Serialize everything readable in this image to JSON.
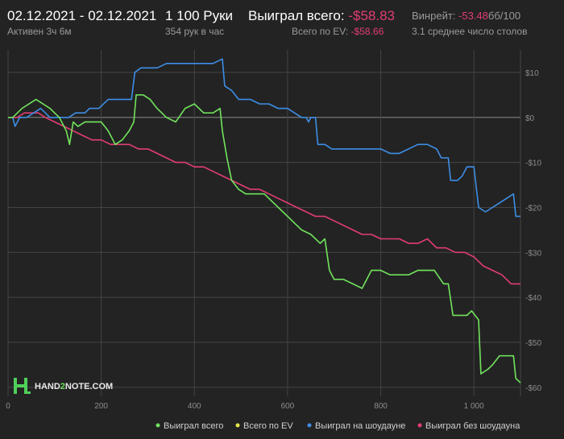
{
  "header": {
    "date_range": "02.12.2021 - 02.12.2021",
    "active": "Активен 3ч 6м",
    "hands": "1 100 Руки",
    "hands_per_hour": "354 рук в час",
    "won_label": "Выиграл всего:",
    "won_value": "-$58.83",
    "ev_label": "Всего по EV:",
    "ev_value": "-$58.66",
    "winrate_label": "Винрейт:",
    "winrate_value": "-53.48",
    "winrate_unit": "бб/100",
    "tables": "3.1 среднее число столов"
  },
  "logo": {
    "text": "HAND2NOTE.COM",
    "highlight": "2"
  },
  "colors": {
    "background": "#232323",
    "grid": "#444444",
    "zero_line": "#8a8a8a",
    "won": "#6ee05c",
    "ev": "#e6e64a",
    "showdown": "#3d8ee6",
    "non_showdown": "#e23d73",
    "negative": "#e23d73"
  },
  "chart_data": {
    "type": "line",
    "xlabel": "",
    "ylabel": "",
    "xlim": [
      0,
      1100
    ],
    "ylim": [
      -62,
      15
    ],
    "x_ticks": [
      0,
      200,
      400,
      600,
      800,
      1000
    ],
    "x_tick_labels": [
      "0",
      "200",
      "400",
      "600",
      "800",
      "1 000"
    ],
    "y_ticks": [
      10,
      0,
      -10,
      -20,
      -30,
      -40,
      -50,
      -60
    ],
    "y_tick_labels": [
      "$10",
      "$0",
      "-$10",
      "-$20",
      "-$30",
      "-$40",
      "-$50",
      "-$60"
    ],
    "grid": true,
    "legend_position": "bottom",
    "series": [
      {
        "name": "Выиграл всего",
        "color_key": "won",
        "points": [
          [
            0,
            0
          ],
          [
            10,
            0
          ],
          [
            20,
            1
          ],
          [
            30,
            2
          ],
          [
            45,
            3
          ],
          [
            60,
            4
          ],
          [
            75,
            3
          ],
          [
            90,
            2
          ],
          [
            100,
            1
          ],
          [
            110,
            0
          ],
          [
            125,
            -3
          ],
          [
            132,
            -6
          ],
          [
            140,
            -1
          ],
          [
            150,
            -2
          ],
          [
            165,
            -1
          ],
          [
            180,
            -1
          ],
          [
            200,
            -1
          ],
          [
            215,
            -3
          ],
          [
            230,
            -6
          ],
          [
            245,
            -5
          ],
          [
            260,
            -3
          ],
          [
            270,
            -1
          ],
          [
            275,
            5
          ],
          [
            290,
            5
          ],
          [
            305,
            4
          ],
          [
            320,
            2
          ],
          [
            340,
            0
          ],
          [
            360,
            -1
          ],
          [
            380,
            2
          ],
          [
            400,
            3
          ],
          [
            420,
            1
          ],
          [
            440,
            1
          ],
          [
            455,
            2
          ],
          [
            460,
            -3
          ],
          [
            470,
            -9
          ],
          [
            480,
            -14
          ],
          [
            495,
            -16
          ],
          [
            510,
            -17
          ],
          [
            530,
            -17
          ],
          [
            550,
            -17
          ],
          [
            570,
            -19
          ],
          [
            590,
            -21
          ],
          [
            610,
            -23
          ],
          [
            630,
            -25
          ],
          [
            650,
            -26
          ],
          [
            670,
            -28
          ],
          [
            680,
            -27
          ],
          [
            690,
            -34
          ],
          [
            700,
            -36
          ],
          [
            720,
            -36
          ],
          [
            740,
            -37
          ],
          [
            760,
            -38
          ],
          [
            780,
            -34
          ],
          [
            800,
            -34
          ],
          [
            820,
            -35
          ],
          [
            840,
            -35
          ],
          [
            860,
            -35
          ],
          [
            880,
            -34
          ],
          [
            900,
            -34
          ],
          [
            915,
            -34
          ],
          [
            935,
            -37
          ],
          [
            945,
            -37
          ],
          [
            955,
            -44
          ],
          [
            970,
            -44
          ],
          [
            985,
            -44
          ],
          [
            995,
            -43
          ],
          [
            1010,
            -45
          ],
          [
            1015,
            -57
          ],
          [
            1030,
            -56
          ],
          [
            1040,
            -55
          ],
          [
            1055,
            -53
          ],
          [
            1070,
            -53
          ],
          [
            1085,
            -53
          ],
          [
            1090,
            -58
          ],
          [
            1100,
            -59
          ]
        ]
      },
      {
        "name": "Всего по EV",
        "color_key": "ev",
        "points": [
          [
            0,
            0
          ],
          [
            10,
            0
          ],
          [
            20,
            1
          ],
          [
            30,
            2
          ],
          [
            45,
            3
          ],
          [
            60,
            4
          ],
          [
            75,
            3
          ],
          [
            90,
            2
          ],
          [
            100,
            1
          ],
          [
            110,
            0
          ],
          [
            125,
            -3
          ],
          [
            132,
            -6
          ],
          [
            140,
            -1
          ],
          [
            150,
            -2
          ],
          [
            165,
            -1
          ],
          [
            180,
            -1
          ],
          [
            200,
            -1
          ],
          [
            215,
            -3
          ],
          [
            230,
            -6
          ],
          [
            245,
            -5
          ],
          [
            260,
            -3
          ],
          [
            270,
            -1
          ],
          [
            275,
            5
          ],
          [
            290,
            5
          ],
          [
            305,
            4
          ],
          [
            320,
            2
          ],
          [
            340,
            0
          ],
          [
            360,
            -1
          ],
          [
            380,
            2
          ],
          [
            400,
            3
          ],
          [
            420,
            1
          ],
          [
            440,
            1
          ],
          [
            455,
            2
          ],
          [
            460,
            -3
          ],
          [
            470,
            -9
          ],
          [
            480,
            -14
          ],
          [
            495,
            -16
          ],
          [
            510,
            -17
          ],
          [
            530,
            -17
          ],
          [
            550,
            -17
          ],
          [
            570,
            -19
          ],
          [
            590,
            -21
          ],
          [
            610,
            -23
          ],
          [
            630,
            -25
          ],
          [
            650,
            -26
          ],
          [
            670,
            -28
          ],
          [
            680,
            -27
          ],
          [
            690,
            -34
          ],
          [
            700,
            -36
          ],
          [
            720,
            -36
          ],
          [
            740,
            -37
          ],
          [
            760,
            -38
          ],
          [
            780,
            -34
          ],
          [
            800,
            -34
          ],
          [
            820,
            -35
          ],
          [
            840,
            -35
          ],
          [
            860,
            -35
          ],
          [
            880,
            -34
          ],
          [
            900,
            -34
          ],
          [
            915,
            -34
          ],
          [
            935,
            -37
          ],
          [
            945,
            -37
          ],
          [
            955,
            -44
          ],
          [
            970,
            -44
          ],
          [
            985,
            -44
          ],
          [
            995,
            -43
          ],
          [
            1010,
            -45
          ],
          [
            1015,
            -57
          ],
          [
            1030,
            -56
          ],
          [
            1040,
            -55
          ],
          [
            1055,
            -53
          ],
          [
            1070,
            -53
          ],
          [
            1085,
            -53
          ],
          [
            1090,
            -58
          ],
          [
            1100,
            -59
          ]
        ]
      },
      {
        "name": "Выиграл на шоудауне",
        "color_key": "showdown",
        "points": [
          [
            0,
            0
          ],
          [
            10,
            0
          ],
          [
            15,
            -2
          ],
          [
            25,
            0
          ],
          [
            40,
            0
          ],
          [
            55,
            1
          ],
          [
            70,
            2
          ],
          [
            80,
            1
          ],
          [
            90,
            0
          ],
          [
            110,
            0
          ],
          [
            130,
            0
          ],
          [
            145,
            1
          ],
          [
            165,
            1
          ],
          [
            175,
            2
          ],
          [
            195,
            2
          ],
          [
            215,
            4
          ],
          [
            240,
            4
          ],
          [
            255,
            4
          ],
          [
            265,
            4
          ],
          [
            272,
            10
          ],
          [
            285,
            11
          ],
          [
            300,
            11
          ],
          [
            320,
            11
          ],
          [
            340,
            12
          ],
          [
            360,
            12
          ],
          [
            380,
            12
          ],
          [
            395,
            12
          ],
          [
            420,
            12
          ],
          [
            440,
            12
          ],
          [
            460,
            13
          ],
          [
            465,
            7
          ],
          [
            480,
            6
          ],
          [
            495,
            4
          ],
          [
            520,
            4
          ],
          [
            540,
            3
          ],
          [
            560,
            3
          ],
          [
            580,
            2
          ],
          [
            600,
            2
          ],
          [
            615,
            1
          ],
          [
            630,
            0
          ],
          [
            640,
            0
          ],
          [
            645,
            -1
          ],
          [
            650,
            0
          ],
          [
            660,
            0
          ],
          [
            665,
            -6
          ],
          [
            680,
            -6
          ],
          [
            695,
            -7
          ],
          [
            720,
            -7
          ],
          [
            750,
            -7
          ],
          [
            780,
            -7
          ],
          [
            800,
            -7
          ],
          [
            820,
            -8
          ],
          [
            840,
            -8
          ],
          [
            860,
            -7
          ],
          [
            880,
            -6
          ],
          [
            900,
            -6
          ],
          [
            920,
            -7
          ],
          [
            930,
            -9
          ],
          [
            945,
            -9
          ],
          [
            950,
            -14
          ],
          [
            965,
            -14
          ],
          [
            975,
            -13
          ],
          [
            985,
            -11
          ],
          [
            1000,
            -11
          ],
          [
            1010,
            -20
          ],
          [
            1025,
            -21
          ],
          [
            1040,
            -20
          ],
          [
            1055,
            -19
          ],
          [
            1070,
            -18
          ],
          [
            1085,
            -17
          ],
          [
            1090,
            -22
          ],
          [
            1100,
            -22
          ]
        ]
      },
      {
        "name": "Выиграл без шоудауна",
        "color_key": "non_showdown",
        "points": [
          [
            0,
            0
          ],
          [
            10,
            0
          ],
          [
            20,
            0
          ],
          [
            35,
            1
          ],
          [
            50,
            1
          ],
          [
            65,
            1
          ],
          [
            80,
            0
          ],
          [
            100,
            -1
          ],
          [
            120,
            -2
          ],
          [
            140,
            -3
          ],
          [
            160,
            -4
          ],
          [
            180,
            -5
          ],
          [
            200,
            -5
          ],
          [
            220,
            -6
          ],
          [
            240,
            -6
          ],
          [
            260,
            -6
          ],
          [
            280,
            -7
          ],
          [
            300,
            -7
          ],
          [
            320,
            -8
          ],
          [
            340,
            -9
          ],
          [
            360,
            -10
          ],
          [
            380,
            -10
          ],
          [
            400,
            -11
          ],
          [
            420,
            -11
          ],
          [
            440,
            -12
          ],
          [
            460,
            -13
          ],
          [
            480,
            -14
          ],
          [
            500,
            -15
          ],
          [
            520,
            -16
          ],
          [
            540,
            -16
          ],
          [
            560,
            -17
          ],
          [
            580,
            -18
          ],
          [
            600,
            -19
          ],
          [
            620,
            -20
          ],
          [
            640,
            -21
          ],
          [
            660,
            -22
          ],
          [
            680,
            -22
          ],
          [
            700,
            -23
          ],
          [
            720,
            -24
          ],
          [
            740,
            -25
          ],
          [
            760,
            -26
          ],
          [
            780,
            -26
          ],
          [
            800,
            -27
          ],
          [
            820,
            -27
          ],
          [
            840,
            -27
          ],
          [
            860,
            -28
          ],
          [
            880,
            -28
          ],
          [
            900,
            -27
          ],
          [
            920,
            -29
          ],
          [
            940,
            -29
          ],
          [
            960,
            -30
          ],
          [
            980,
            -30
          ],
          [
            1000,
            -31
          ],
          [
            1020,
            -33
          ],
          [
            1040,
            -34
          ],
          [
            1060,
            -35
          ],
          [
            1070,
            -36
          ],
          [
            1080,
            -37
          ],
          [
            1100,
            -37
          ]
        ]
      }
    ]
  }
}
